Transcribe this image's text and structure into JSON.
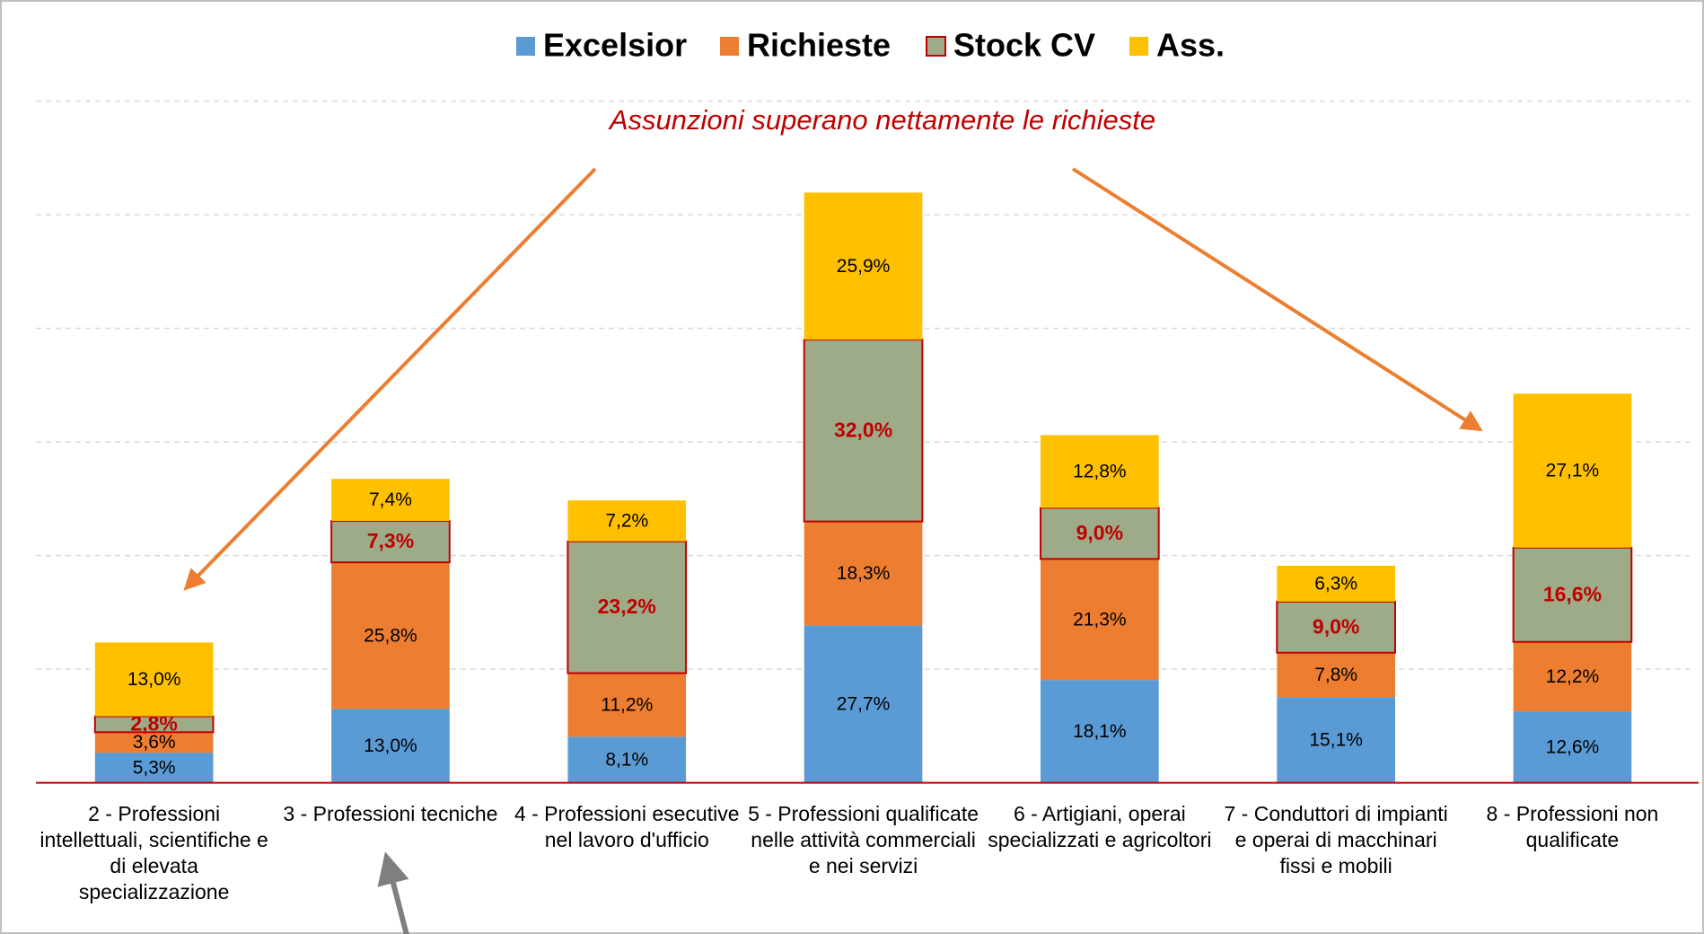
{
  "chart_data": {
    "type": "stacked_bar",
    "annotation": "Assunzioni superano nettamente le richieste",
    "categories": [
      "2 - Professioni intellettuali, scientifiche e di elevata specializzazione",
      "3 - Professioni tecniche",
      "4 - Professioni esecutive nel lavoro d'ufficio",
      "5 - Professioni qualificate nelle attività commerciali e nei servizi",
      "6 - Artigiani, operai specializzati e agricoltori",
      "7 - Conduttori di impianti e operai di macchinari fissi e mobili",
      "8 - Professioni non qualificate"
    ],
    "series": [
      {
        "name": "Excelsior",
        "color": "#5b9bd5",
        "values": [
          5.3,
          13.0,
          8.1,
          27.7,
          18.1,
          15.1,
          12.6
        ],
        "value_labels": [
          "5,3%",
          "13,0%",
          "8,1%",
          "27,7%",
          "18,1%",
          "15,1%",
          "12,6%"
        ]
      },
      {
        "name": "Richieste",
        "color": "#ed7d31",
        "values": [
          3.6,
          25.8,
          11.2,
          18.3,
          21.3,
          7.8,
          12.2
        ],
        "value_labels": [
          "3,6%",
          "25,8%",
          "11,2%",
          "18,3%",
          "21,3%",
          "7,8%",
          "12,2%"
        ]
      },
      {
        "name": "Stock CV",
        "color": "#9eab88",
        "border": "#c00000",
        "values": [
          2.8,
          7.3,
          23.2,
          32.0,
          9.0,
          9.0,
          16.6
        ],
        "value_labels": [
          "2,8%",
          "7,3%",
          "23,2%",
          "32,0%",
          "9,0%",
          "9,0%",
          "16,6%"
        ]
      },
      {
        "name": "Ass.",
        "color": "#ffc000",
        "values": [
          13.0,
          7.4,
          7.2,
          25.9,
          12.8,
          6.3,
          27.1
        ],
        "value_labels": [
          "13,0%",
          "7,4%",
          "7,2%",
          "25,9%",
          "12,8%",
          "6,3%",
          "27,1%"
        ]
      }
    ],
    "ylim": [
      0,
      120
    ],
    "yticks": [
      0,
      20,
      40,
      60,
      80,
      100,
      120
    ],
    "grid": true
  }
}
